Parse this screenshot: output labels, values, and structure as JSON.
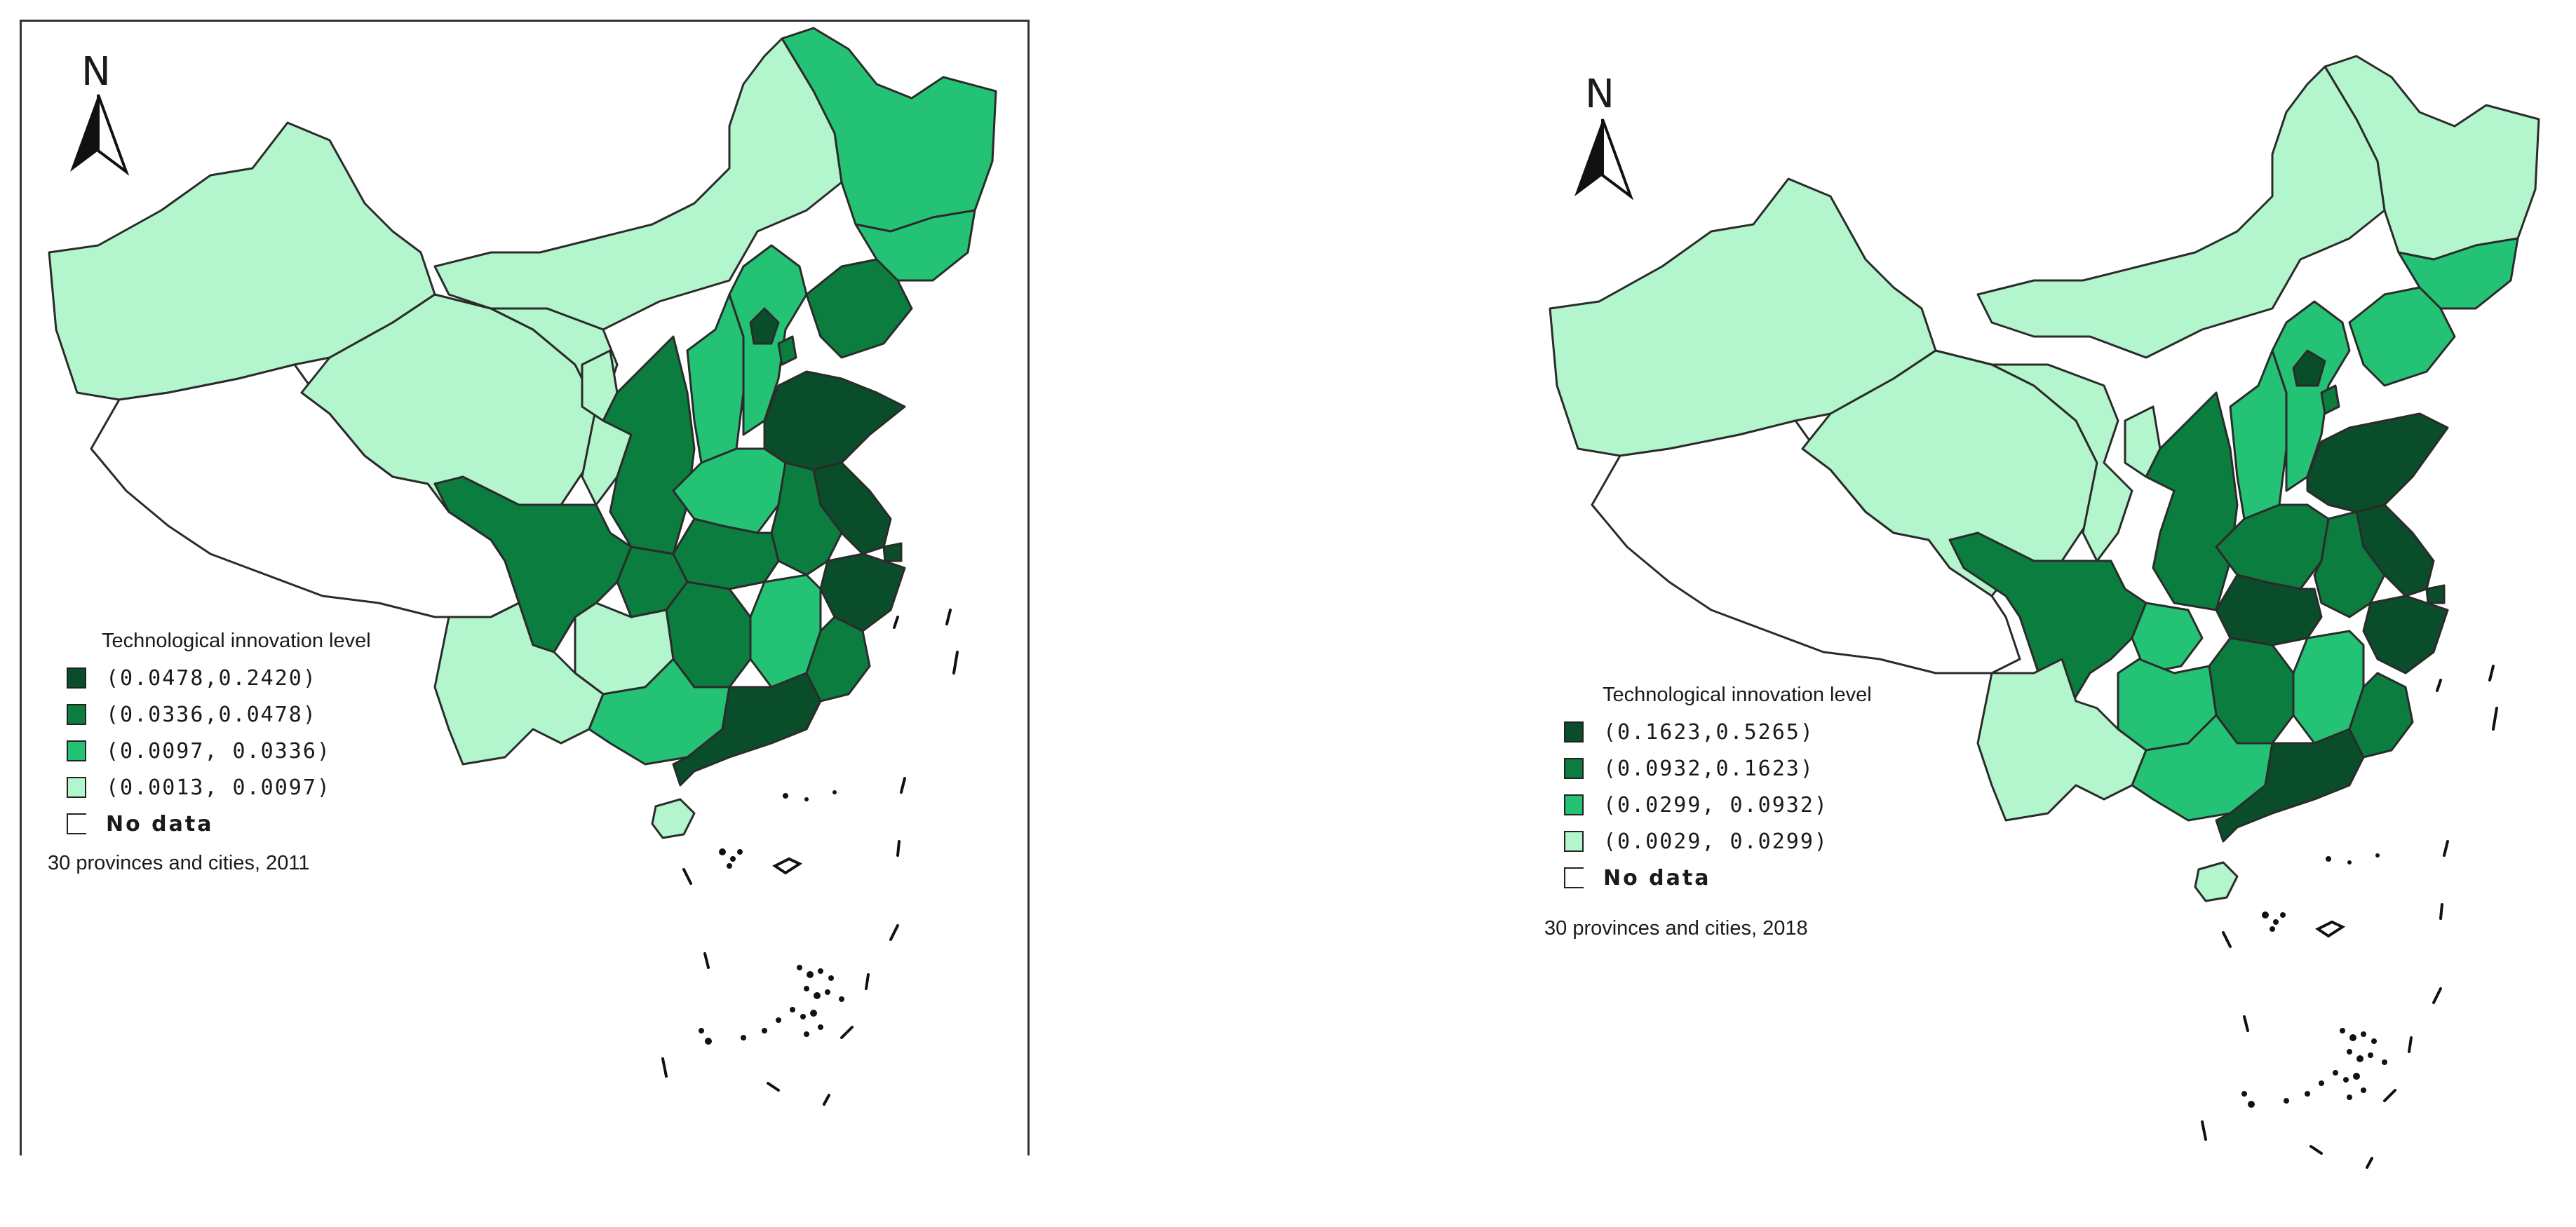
{
  "colors": {
    "class1": "#0a4d2a",
    "class2": "#0b7d3f",
    "class3": "#24c274",
    "class4": "#b3f5cc",
    "nodata": "#ffffff",
    "border": "#2b2b2b"
  },
  "maps": [
    {
      "north_label": "N",
      "legend_title": "Technological innovation level",
      "legend": [
        {
          "label": "(0.0478,0.2420)",
          "color": "#0a4d2a"
        },
        {
          "label": "(0.0336,0.0478)",
          "color": "#0b7d3f"
        },
        {
          "label": "(0.0097, 0.0336)",
          "color": "#24c274"
        },
        {
          "label": "(0.0013, 0.0097)",
          "color": "#b3f5cc"
        },
        {
          "label": "No data",
          "color": "none"
        }
      ],
      "caption": "30 provinces and cities, 2011"
    },
    {
      "north_label": "N",
      "legend_title": "Technological innovation level",
      "legend": [
        {
          "label": "(0.1623,0.5265)",
          "color": "#0a4d2a"
        },
        {
          "label": "(0.0932,0.1623)",
          "color": "#0b7d3f"
        },
        {
          "label": "(0.0299, 0.0932)",
          "color": "#24c274"
        },
        {
          "label": "(0.0029, 0.0299)",
          "color": "#b3f5cc"
        },
        {
          "label": "No data",
          "color": "none"
        }
      ],
      "caption": "30 provinces and cities, 2018"
    }
  ]
}
